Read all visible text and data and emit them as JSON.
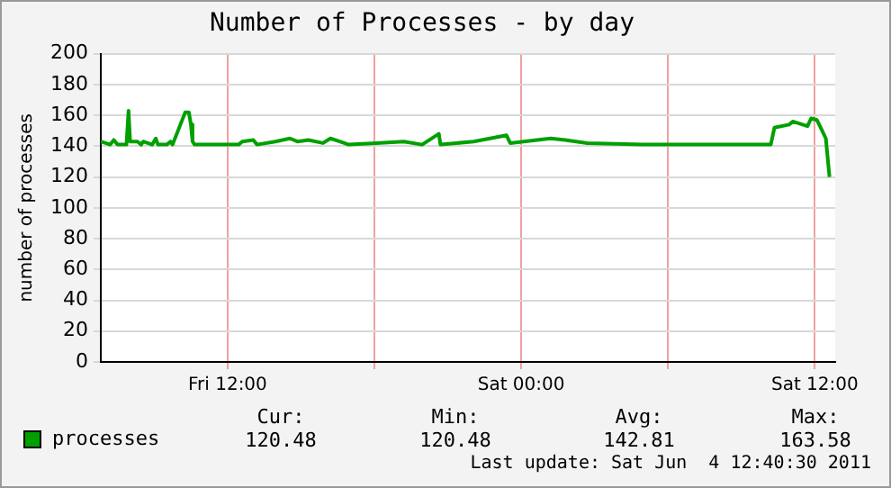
{
  "chart_data": {
    "type": "line",
    "title": "Number of Processes - by day",
    "ylabel": "number of processes",
    "x": [
      "2011-06-03T06:49",
      "2011-06-03T07:12",
      "2011-06-03T07:21",
      "2011-06-03T07:30",
      "2011-06-03T07:52",
      "2011-06-03T07:57",
      "2011-06-03T08:01",
      "2011-06-03T08:19",
      "2011-06-03T08:28",
      "2011-06-03T08:33",
      "2011-06-03T08:55",
      "2011-06-03T09:04",
      "2011-06-03T09:09",
      "2011-06-03T09:31",
      "2011-06-03T09:40",
      "2011-06-03T09:45",
      "2011-06-03T10:16",
      "2011-06-03T10:25",
      "2011-06-03T10:30",
      "2011-06-03T10:34",
      "2011-06-03T10:39",
      "2011-06-03T12:27",
      "2011-06-03T12:36",
      "2011-06-03T13:03",
      "2011-06-03T13:12",
      "2011-06-03T13:57",
      "2011-06-03T14:33",
      "2011-06-03T14:51",
      "2011-06-03T15:18",
      "2011-06-03T15:54",
      "2011-06-03T16:12",
      "2011-06-03T16:35",
      "2011-06-03T16:57",
      "2011-06-03T18:05",
      "2011-06-03T19:12",
      "2011-06-03T19:57",
      "2011-06-03T20:38",
      "2011-06-03T20:42",
      "2011-06-03T22:03",
      "2011-06-03T23:24",
      "2011-06-03T23:33",
      "2011-06-04T01:12",
      "2011-06-04T01:48",
      "2011-06-04T02:42",
      "2011-06-04T04:57",
      "2011-06-04T07:57",
      "2011-06-04T10:12",
      "2011-06-04T10:21",
      "2011-06-04T10:57",
      "2011-06-04T11:06",
      "2011-06-04T11:42",
      "2011-06-04T11:51",
      "2011-06-04T12:05",
      "2011-06-04T12:18",
      "2011-06-04T12:27",
      "2011-06-04T12:36"
    ],
    "series": [
      {
        "name": "processes",
        "color": "#00a000",
        "values": [
          143,
          141,
          144,
          141,
          141,
          163,
          143,
          143,
          141,
          143,
          141,
          145,
          141,
          141,
          143,
          141,
          162,
          162,
          154,
          143,
          141,
          141,
          143,
          144,
          141,
          143,
          145,
          143,
          144,
          142,
          145,
          143,
          141,
          142,
          143,
          141,
          148,
          141,
          143,
          147,
          142,
          145,
          144,
          142,
          141,
          141,
          141,
          152,
          154,
          156,
          153,
          158,
          157,
          150,
          145,
          120
        ]
      }
    ],
    "xlim": [
      "2011-06-03T06:49",
      "2011-06-04T12:50"
    ],
    "xticks": [
      {
        "value": "2011-06-03T12:00",
        "label": "Fri 12:00"
      },
      {
        "value": "2011-06-03T18:00",
        "label": null
      },
      {
        "value": "2011-06-04T00:00",
        "label": "Sat 00:00"
      },
      {
        "value": "2011-06-04T06:00",
        "label": null
      },
      {
        "value": "2011-06-04T12:00",
        "label": "Sat 12:00"
      }
    ],
    "ylim": [
      0,
      200
    ],
    "yticks": [
      0,
      20,
      40,
      60,
      80,
      100,
      120,
      140,
      160,
      180,
      200
    ],
    "grid": true,
    "legend": "bottom",
    "marker": "none",
    "line_style": "solid",
    "annotations": [
      "Cur:",
      "Min:",
      "Avg:",
      "Max:",
      "120.48",
      "120.48",
      "142.81",
      "163.58",
      "Last update: Sat Jun  4 12:40:30 2011"
    ]
  }
}
